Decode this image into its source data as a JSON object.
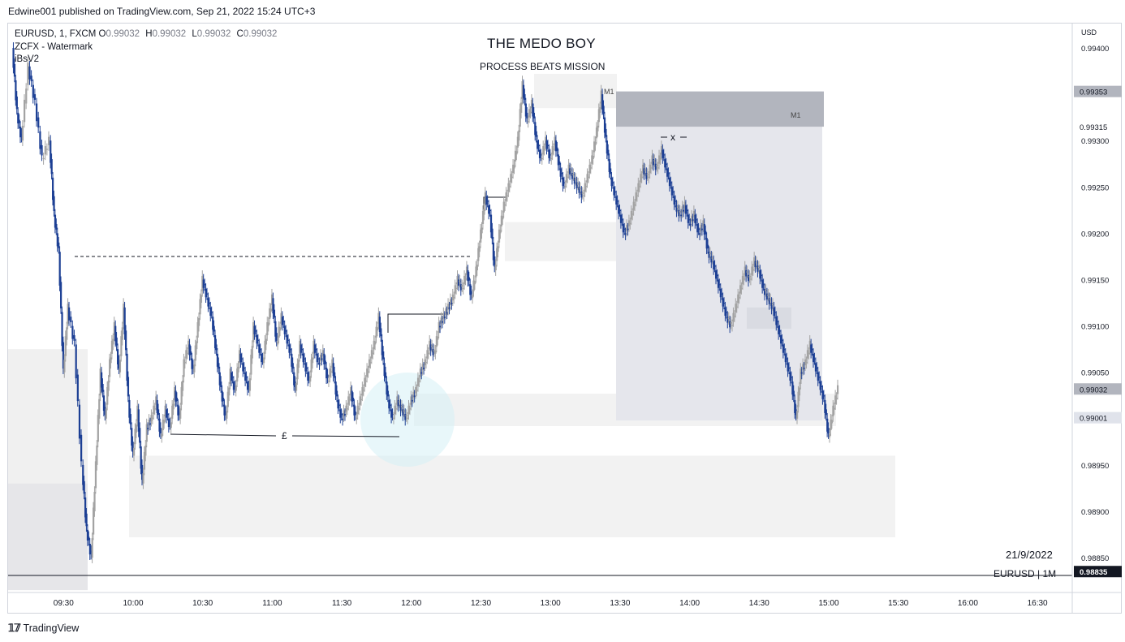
{
  "header": {
    "published": "Edwine001 published on TradingView.com, Sep 21, 2022 15:24 UTC+3"
  },
  "legend": {
    "symbol": "EURUSD, 1, FXCM",
    "open_label": "O",
    "open": "0.99032",
    "high_label": "H",
    "high": "0.99032",
    "low_label": "L",
    "low": "0.99032",
    "close_label": "C",
    "close": "0.99032",
    "indicator1": "ZCFX - Watermark",
    "indicator2": "iBsV2"
  },
  "watermark": {
    "title": "THE MEDO BOY",
    "subtitle": "PROCESS BEATS MISSION",
    "date": "21/9/2022",
    "symbol": "EURUSD | 1M"
  },
  "annotations": {
    "zone_label_1": "M1",
    "zone_label_2": "M1",
    "equal_lows_mark": "£",
    "x_mark": "x"
  },
  "footer": {
    "brand": "TradingView"
  },
  "colors": {
    "bull": "#1c3f94",
    "bear": "#a3a3a3",
    "zone": "#f1f1f1",
    "dark_zone": "#b2b5be",
    "circle": "#d6f0f5"
  },
  "chart_data": {
    "type": "candlestick",
    "currency": "USD",
    "x_ticks": [
      "09:30",
      "10:00",
      "10:30",
      "11:00",
      "11:30",
      "12:00",
      "12:30",
      "13:00",
      "13:30",
      "14:00",
      "14:30",
      "15:00",
      "15:30",
      "16:00",
      "16:30"
    ],
    "y_ticks": [
      "0.99400",
      "0.99300",
      "0.99250",
      "0.99200",
      "0.99150",
      "0.99100",
      "0.99050",
      "0.98950",
      "0.98900",
      "0.98850"
    ],
    "ylim": [
      0.98815,
      0.9943
    ],
    "price_labels": [
      {
        "value": 0.99353,
        "text": "0.99353",
        "style": "gray"
      },
      {
        "value": 0.99315,
        "text": "0.99315",
        "style": "plain"
      },
      {
        "value": 0.99032,
        "text": "0.99032",
        "style": "gray"
      },
      {
        "value": 0.99001,
        "text": "0.99001",
        "style": "light"
      },
      {
        "value": 0.98835,
        "text": "0.98835",
        "style": "dark"
      }
    ],
    "path": [
      [
        "09:08",
        0.994
      ],
      [
        "09:10",
        0.9933
      ],
      [
        "09:12",
        0.993
      ],
      [
        "09:15",
        0.9938
      ],
      [
        "09:18",
        0.9934
      ],
      [
        "09:21",
        0.9928
      ],
      [
        "09:24",
        0.993
      ],
      [
        "09:26",
        0.9922
      ],
      [
        "09:28",
        0.9918
      ],
      [
        "09:30",
        0.9905
      ],
      [
        "09:32",
        0.9912
      ],
      [
        "09:35",
        0.9908
      ],
      [
        "09:38",
        0.9895
      ],
      [
        "09:40",
        0.9888
      ],
      [
        "09:42",
        0.9885
      ],
      [
        "09:44",
        0.9895
      ],
      [
        "09:46",
        0.9905
      ],
      [
        "09:48",
        0.99
      ],
      [
        "09:50",
        0.9906
      ],
      [
        "09:52",
        0.991
      ],
      [
        "09:54",
        0.9905
      ],
      [
        "09:56",
        0.9912
      ],
      [
        "09:58",
        0.9902
      ],
      [
        "10:00",
        0.9896
      ],
      [
        "10:02",
        0.9901
      ],
      [
        "10:04",
        0.9893
      ],
      [
        "10:06",
        0.9899
      ],
      [
        "10:08",
        0.99
      ],
      [
        "10:10",
        0.9902
      ],
      [
        "10:12",
        0.9898
      ],
      [
        "10:14",
        0.9901
      ],
      [
        "10:16",
        0.9899
      ],
      [
        "10:18",
        0.9903
      ],
      [
        "10:20",
        0.99
      ],
      [
        "10:22",
        0.9906
      ],
      [
        "10:24",
        0.9908
      ],
      [
        "10:26",
        0.9905
      ],
      [
        "10:28",
        0.991
      ],
      [
        "10:30",
        0.9915
      ],
      [
        "10:32",
        0.9913
      ],
      [
        "10:34",
        0.9911
      ],
      [
        "10:36",
        0.9907
      ],
      [
        "10:38",
        0.9903
      ],
      [
        "10:40",
        0.99
      ],
      [
        "10:42",
        0.9905
      ],
      [
        "10:44",
        0.9903
      ],
      [
        "10:46",
        0.9907
      ],
      [
        "10:48",
        0.9905
      ],
      [
        "10:50",
        0.9903
      ],
      [
        "10:52",
        0.991
      ],
      [
        "10:54",
        0.9908
      ],
      [
        "10:56",
        0.9906
      ],
      [
        "10:58",
        0.991
      ],
      [
        "11:00",
        0.9913
      ],
      [
        "11:02",
        0.9908
      ],
      [
        "11:04",
        0.9911
      ],
      [
        "11:06",
        0.9909
      ],
      [
        "11:08",
        0.9907
      ],
      [
        "11:10",
        0.9903
      ],
      [
        "11:12",
        0.9908
      ],
      [
        "11:14",
        0.9906
      ],
      [
        "11:16",
        0.9904
      ],
      [
        "11:18",
        0.9908
      ],
      [
        "11:20",
        0.9906
      ],
      [
        "11:22",
        0.9907
      ],
      [
        "11:24",
        0.9904
      ],
      [
        "11:26",
        0.9906
      ],
      [
        "11:28",
        0.9902
      ],
      [
        "11:30",
        0.99
      ],
      [
        "11:32",
        0.9901
      ],
      [
        "11:34",
        0.9903
      ],
      [
        "11:36",
        0.99
      ],
      [
        "11:38",
        0.9902
      ],
      [
        "11:40",
        0.9904
      ],
      [
        "11:42",
        0.9906
      ],
      [
        "11:44",
        0.9908
      ],
      [
        "11:46",
        0.9911
      ],
      [
        "11:48",
        0.9906
      ],
      [
        "11:50",
        0.9902
      ],
      [
        "11:52",
        0.99
      ],
      [
        "11:54",
        0.9902
      ],
      [
        "11:56",
        0.9901
      ],
      [
        "11:58",
        0.99
      ],
      [
        "12:00",
        0.9902
      ],
      [
        "12:02",
        0.9903
      ],
      [
        "12:04",
        0.9905
      ],
      [
        "12:06",
        0.9906
      ],
      [
        "12:08",
        0.9908
      ],
      [
        "12:10",
        0.9907
      ],
      [
        "12:12",
        0.991
      ],
      [
        "12:14",
        0.9911
      ],
      [
        "12:16",
        0.9912
      ],
      [
        "12:18",
        0.9913
      ],
      [
        "12:20",
        0.9915
      ],
      [
        "12:22",
        0.9914
      ],
      [
        "12:24",
        0.9916
      ],
      [
        "12:26",
        0.9913
      ],
      [
        "12:28",
        0.9916
      ],
      [
        "12:30",
        0.992
      ],
      [
        "12:32",
        0.9924
      ],
      [
        "12:34",
        0.9922
      ],
      [
        "12:36",
        0.9916
      ],
      [
        "12:38",
        0.992
      ],
      [
        "12:40",
        0.9923
      ],
      [
        "12:42",
        0.9925
      ],
      [
        "12:44",
        0.9927
      ],
      [
        "12:46",
        0.993
      ],
      [
        "12:48",
        0.9936
      ],
      [
        "12:50",
        0.9932
      ],
      [
        "12:52",
        0.9934
      ],
      [
        "12:54",
        0.993
      ],
      [
        "12:56",
        0.9928
      ],
      [
        "12:58",
        0.993
      ],
      [
        "13:00",
        0.9928
      ],
      [
        "13:02",
        0.993
      ],
      [
        "13:04",
        0.9927
      ],
      [
        "13:06",
        0.9925
      ],
      [
        "13:08",
        0.9927
      ],
      [
        "13:10",
        0.9926
      ],
      [
        "13:12",
        0.9925
      ],
      [
        "13:14",
        0.9924
      ],
      [
        "13:16",
        0.9926
      ],
      [
        "13:18",
        0.9928
      ],
      [
        "13:20",
        0.9931
      ],
      [
        "13:22",
        0.9935
      ],
      [
        "13:24",
        0.993
      ],
      [
        "13:26",
        0.9926
      ],
      [
        "13:28",
        0.9924
      ],
      [
        "13:30",
        0.9922
      ],
      [
        "13:32",
        0.992
      ],
      [
        "13:34",
        0.9921
      ],
      [
        "13:36",
        0.9923
      ],
      [
        "13:38",
        0.9925
      ],
      [
        "13:40",
        0.9927
      ],
      [
        "13:42",
        0.9926
      ],
      [
        "13:44",
        0.9928
      ],
      [
        "13:46",
        0.9927
      ],
      [
        "13:48",
        0.9929
      ],
      [
        "13:50",
        0.9927
      ],
      [
        "13:52",
        0.9925
      ],
      [
        "13:54",
        0.9923
      ],
      [
        "13:56",
        0.9922
      ],
      [
        "13:58",
        0.9923
      ],
      [
        "14:00",
        0.9921
      ],
      [
        "14:02",
        0.9922
      ],
      [
        "14:04",
        0.992
      ],
      [
        "14:06",
        0.9921
      ],
      [
        "14:08",
        0.9918
      ],
      [
        "14:10",
        0.9917
      ],
      [
        "14:12",
        0.9915
      ],
      [
        "14:14",
        0.9913
      ],
      [
        "14:16",
        0.9911
      ],
      [
        "14:18",
        0.991
      ],
      [
        "14:20",
        0.9912
      ],
      [
        "14:22",
        0.9914
      ],
      [
        "14:24",
        0.9916
      ],
      [
        "14:26",
        0.9915
      ],
      [
        "14:28",
        0.9917
      ],
      [
        "14:30",
        0.9916
      ],
      [
        "14:32",
        0.9914
      ],
      [
        "14:34",
        0.9913
      ],
      [
        "14:36",
        0.9912
      ],
      [
        "14:38",
        0.991
      ],
      [
        "14:40",
        0.9908
      ],
      [
        "14:42",
        0.9906
      ],
      [
        "14:44",
        0.9904
      ],
      [
        "14:46",
        0.99
      ],
      [
        "14:48",
        0.9905
      ],
      [
        "14:50",
        0.9906
      ],
      [
        "14:52",
        0.9908
      ],
      [
        "14:54",
        0.9906
      ],
      [
        "14:56",
        0.9904
      ],
      [
        "14:58",
        0.9902
      ],
      [
        "15:00",
        0.9898
      ],
      [
        "15:02",
        0.9901
      ],
      [
        "15:04",
        0.99032
      ]
    ]
  }
}
